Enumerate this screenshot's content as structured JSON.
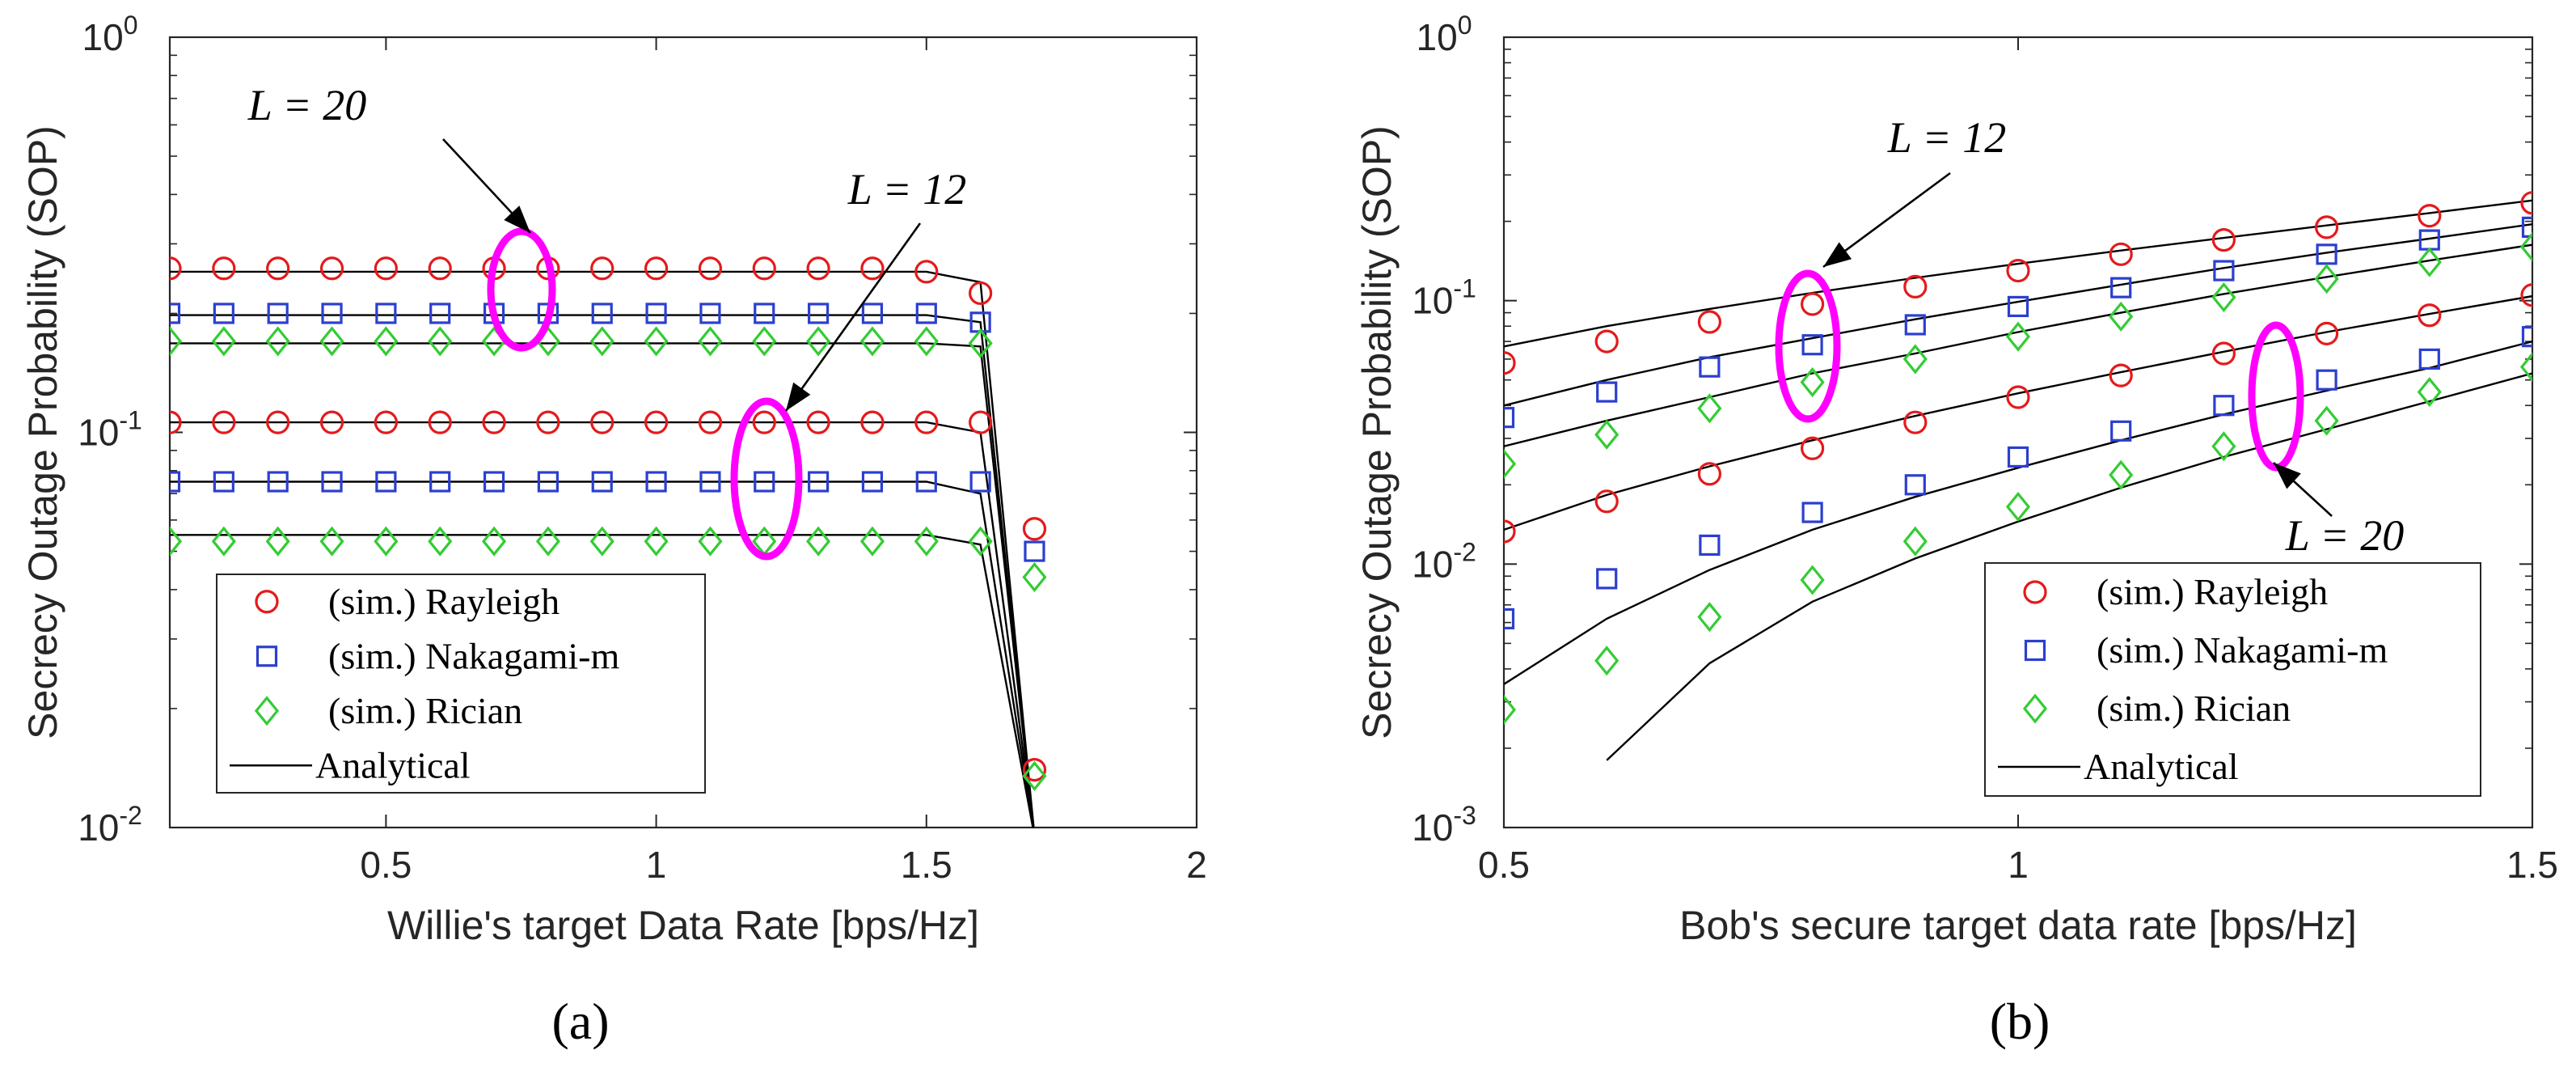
{
  "chart_data": [
    {
      "type": "line",
      "panel_label": "(a)",
      "xlabel": "Willie's target Data Rate [bps/Hz]",
      "ylabel": "Secrecy Outage Probability (SOP)",
      "xlim": [
        0.1,
        2
      ],
      "ylim": [
        0.01,
        1
      ],
      "yscale": "log",
      "xticks": [
        0.5,
        1,
        1.5,
        2
      ],
      "xtick_labels": [
        "0.5",
        "1",
        "1.5",
        "2"
      ],
      "yticks": [
        0.01,
        0.1,
        1
      ],
      "ytick_labels": [
        {
          "base": "10",
          "exp": "-2"
        },
        {
          "base": "10",
          "exp": "-1"
        },
        {
          "base": "10",
          "exp": "0"
        }
      ],
      "legend": {
        "placement": "bottom-left",
        "entries": [
          "(sim.) Rayleigh",
          "(sim.) Nakagami-m",
          "(sim.) Rician",
          "Analytical"
        ]
      },
      "annotations": [
        {
          "text": "L = 20",
          "target": "upper group (L = 20) at x = 0.75"
        },
        {
          "text": "L = 12",
          "target": "lower group (L = 12) at x = 1.2"
        }
      ],
      "series": [
        {
          "name": "(sim.) Rayleigh, L = 20",
          "marker": "circle",
          "color": "#e41a1c",
          "x": [
            0.1,
            0.2,
            0.3,
            0.4,
            0.5,
            0.6,
            0.7,
            0.8,
            0.9,
            1.0,
            1.1,
            1.2,
            1.3,
            1.4,
            1.5,
            1.6,
            1.7
          ],
          "y": [
            0.26,
            0.26,
            0.26,
            0.26,
            0.26,
            0.26,
            0.26,
            0.26,
            0.26,
            0.26,
            0.26,
            0.26,
            0.26,
            0.26,
            0.255,
            0.225,
            0.057
          ]
        },
        {
          "name": "(sim.) Nakagami-m, L = 20",
          "marker": "square",
          "color": "#2b3fcf",
          "x": [
            0.1,
            0.2,
            0.3,
            0.4,
            0.5,
            0.6,
            0.7,
            0.8,
            0.9,
            1.0,
            1.1,
            1.2,
            1.3,
            1.4,
            1.5,
            1.6,
            1.7
          ],
          "y": [
            0.2,
            0.2,
            0.2,
            0.2,
            0.2,
            0.2,
            0.2,
            0.2,
            0.2,
            0.2,
            0.2,
            0.2,
            0.2,
            0.2,
            0.2,
            0.19,
            0.05
          ]
        },
        {
          "name": "(sim.) Rician, L = 20",
          "marker": "diamond",
          "color": "#33cc33",
          "x": [
            0.1,
            0.2,
            0.3,
            0.4,
            0.5,
            0.6,
            0.7,
            0.8,
            0.9,
            1.0,
            1.1,
            1.2,
            1.3,
            1.4,
            1.5,
            1.6,
            1.7
          ],
          "y": [
            0.17,
            0.17,
            0.17,
            0.17,
            0.17,
            0.17,
            0.17,
            0.17,
            0.17,
            0.17,
            0.17,
            0.17,
            0.17,
            0.17,
            0.17,
            0.168,
            0.043
          ]
        },
        {
          "name": "(sim.) Rayleigh, L = 12",
          "marker": "circle",
          "color": "#e41a1c",
          "x": [
            0.1,
            0.2,
            0.3,
            0.4,
            0.5,
            0.6,
            0.7,
            0.8,
            0.9,
            1.0,
            1.1,
            1.2,
            1.3,
            1.4,
            1.5,
            1.6,
            1.7
          ],
          "y": [
            0.106,
            0.106,
            0.106,
            0.106,
            0.106,
            0.106,
            0.106,
            0.106,
            0.106,
            0.106,
            0.106,
            0.106,
            0.106,
            0.106,
            0.106,
            0.106,
            0.014
          ]
        },
        {
          "name": "(sim.) Nakagami-m, L = 12",
          "marker": "square",
          "color": "#2b3fcf",
          "x": [
            0.1,
            0.2,
            0.3,
            0.4,
            0.5,
            0.6,
            0.7,
            0.8,
            0.9,
            1.0,
            1.1,
            1.2,
            1.3,
            1.4,
            1.5,
            1.6
          ],
          "y": [
            0.075,
            0.075,
            0.075,
            0.075,
            0.075,
            0.075,
            0.075,
            0.075,
            0.075,
            0.075,
            0.075,
            0.075,
            0.075,
            0.075,
            0.075,
            0.075
          ]
        },
        {
          "name": "(sim.) Rician, L = 12",
          "marker": "diamond",
          "color": "#33cc33",
          "x": [
            0.1,
            0.2,
            0.3,
            0.4,
            0.5,
            0.6,
            0.7,
            0.8,
            0.9,
            1.0,
            1.1,
            1.2,
            1.3,
            1.4,
            1.5,
            1.6,
            1.7
          ],
          "y": [
            0.053,
            0.053,
            0.053,
            0.053,
            0.053,
            0.053,
            0.053,
            0.053,
            0.053,
            0.053,
            0.053,
            0.053,
            0.053,
            0.053,
            0.053,
            0.053,
            0.0135
          ]
        },
        {
          "name": "Analytical (Rayleigh, L = 20)",
          "marker": "none",
          "color": "#000000",
          "x": [
            0.1,
            1.5,
            1.6,
            1.7
          ],
          "y": [
            0.255,
            0.255,
            0.24,
            0.0095
          ]
        },
        {
          "name": "Analytical (Nakagami-m, L = 20)",
          "marker": "none",
          "color": "#000000",
          "x": [
            0.1,
            1.5,
            1.6,
            1.7
          ],
          "y": [
            0.198,
            0.198,
            0.19,
            0.0095
          ]
        },
        {
          "name": "Analytical (Rician, L = 20)",
          "marker": "none",
          "color": "#000000",
          "x": [
            0.1,
            1.5,
            1.6,
            1.7
          ],
          "y": [
            0.168,
            0.168,
            0.165,
            0.0095
          ]
        },
        {
          "name": "Analytical (Rayleigh, L = 12)",
          "marker": "none",
          "color": "#000000",
          "x": [
            0.1,
            1.5,
            1.6,
            1.7
          ],
          "y": [
            0.106,
            0.106,
            0.1,
            0.0095
          ]
        },
        {
          "name": "Analytical (Nakagami-m, L = 12)",
          "marker": "none",
          "color": "#000000",
          "x": [
            0.1,
            1.5,
            1.6,
            1.7
          ],
          "y": [
            0.075,
            0.075,
            0.07,
            0.0095
          ]
        },
        {
          "name": "Analytical (Rician, L = 12)",
          "marker": "none",
          "color": "#000000",
          "x": [
            0.1,
            1.5,
            1.6,
            1.7
          ],
          "y": [
            0.055,
            0.055,
            0.052,
            0.0095
          ]
        }
      ]
    },
    {
      "type": "line",
      "panel_label": "(b)",
      "xlabel": "Bob's secure target data rate [bps/Hz]",
      "ylabel": "Secrecy Outage Probability (SOP)",
      "xlim": [
        0.5,
        1.5
      ],
      "ylim": [
        0.001,
        1
      ],
      "yscale": "log",
      "xticks": [
        0.5,
        1,
        1.5
      ],
      "xtick_labels": [
        "0.5",
        "1",
        "1.5"
      ],
      "yticks": [
        0.001,
        0.01,
        0.1,
        1
      ],
      "ytick_labels": [
        {
          "base": "10",
          "exp": "-3"
        },
        {
          "base": "10",
          "exp": "-2"
        },
        {
          "base": "10",
          "exp": "-1"
        },
        {
          "base": "10",
          "exp": "0"
        }
      ],
      "legend": {
        "placement": "bottom-right",
        "entries": [
          "(sim.) Rayleigh",
          "(sim.) Nakagami-m",
          "(sim.) Rician",
          "Analytical"
        ]
      },
      "annotations": [
        {
          "text": "L = 12",
          "target": "upper group (L = 12) at x = 0.8"
        },
        {
          "text": "L = 20",
          "target": "lower group (L = 20) at x = 1.25"
        }
      ],
      "series": [
        {
          "name": "(sim.) Rayleigh, L = 12",
          "marker": "circle",
          "color": "#e41a1c",
          "x": [
            0.5,
            0.6,
            0.7,
            0.8,
            0.9,
            1.0,
            1.1,
            1.2,
            1.3,
            1.4,
            1.5
          ],
          "y": [
            0.058,
            0.07,
            0.083,
            0.097,
            0.113,
            0.13,
            0.15,
            0.17,
            0.19,
            0.21,
            0.235
          ]
        },
        {
          "name": "(sim.) Nakagami-m, L = 12",
          "marker": "square",
          "color": "#2b3fcf",
          "x": [
            0.5,
            0.6,
            0.7,
            0.8,
            0.9,
            1.0,
            1.1,
            1.2,
            1.3,
            1.4,
            1.5
          ],
          "y": [
            0.036,
            0.045,
            0.056,
            0.068,
            0.081,
            0.095,
            0.112,
            0.13,
            0.15,
            0.17,
            0.19
          ]
        },
        {
          "name": "(sim.) Rician, L = 12",
          "marker": "diamond",
          "color": "#33cc33",
          "x": [
            0.5,
            0.6,
            0.7,
            0.8,
            0.9,
            1.0,
            1.1,
            1.2,
            1.3,
            1.4,
            1.5
          ],
          "y": [
            0.024,
            0.031,
            0.039,
            0.049,
            0.06,
            0.073,
            0.087,
            0.103,
            0.121,
            0.14,
            0.16
          ]
        },
        {
          "name": "(sim.) Rayleigh, L = 20",
          "marker": "circle",
          "color": "#e41a1c",
          "x": [
            0.5,
            0.6,
            0.7,
            0.8,
            0.9,
            1.0,
            1.1,
            1.2,
            1.3,
            1.4,
            1.5
          ],
          "y": [
            0.0133,
            0.0173,
            0.022,
            0.0275,
            0.0345,
            0.043,
            0.052,
            0.063,
            0.075,
            0.088,
            0.105
          ]
        },
        {
          "name": "(sim.) Nakagami-m, L = 20",
          "marker": "square",
          "color": "#2b3fcf",
          "x": [
            0.5,
            0.6,
            0.7,
            0.8,
            0.9,
            1.0,
            1.1,
            1.2,
            1.3,
            1.4,
            1.5
          ],
          "y": [
            0.0062,
            0.0088,
            0.0118,
            0.0157,
            0.02,
            0.0255,
            0.032,
            0.04,
            0.05,
            0.06,
            0.073
          ]
        },
        {
          "name": "(sim.) Rician, L = 20",
          "marker": "diamond",
          "color": "#33cc33",
          "x": [
            0.5,
            0.6,
            0.7,
            0.8,
            0.9,
            1.0,
            1.1,
            1.2,
            1.3,
            1.4,
            1.5
          ],
          "y": [
            0.0028,
            0.0043,
            0.0063,
            0.0087,
            0.0122,
            0.0165,
            0.0218,
            0.028,
            0.035,
            0.045,
            0.056
          ]
        },
        {
          "name": "Analytical (Rayleigh, L = 12)",
          "marker": "none",
          "color": "#000000",
          "x": [
            0.5,
            0.6,
            0.7,
            0.8,
            0.9,
            1.0,
            1.1,
            1.2,
            1.3,
            1.4,
            1.5
          ],
          "y": [
            0.067,
            0.08,
            0.093,
            0.107,
            0.122,
            0.138,
            0.155,
            0.173,
            0.193,
            0.215,
            0.24
          ]
        },
        {
          "name": "Analytical (Nakagami-m, L = 12)",
          "marker": "none",
          "color": "#000000",
          "x": [
            0.5,
            0.6,
            0.7,
            0.8,
            0.9,
            1.0,
            1.1,
            1.2,
            1.3,
            1.4,
            1.5
          ],
          "y": [
            0.04,
            0.05,
            0.061,
            0.072,
            0.085,
            0.099,
            0.115,
            0.133,
            0.152,
            0.172,
            0.195
          ]
        },
        {
          "name": "Analytical (Rician, L = 12)",
          "marker": "none",
          "color": "#000000",
          "x": [
            0.5,
            0.6,
            0.7,
            0.8,
            0.9,
            1.0,
            1.1,
            1.2,
            1.3,
            1.4,
            1.5
          ],
          "y": [
            0.028,
            0.035,
            0.043,
            0.053,
            0.063,
            0.076,
            0.09,
            0.106,
            0.123,
            0.142,
            0.163
          ]
        },
        {
          "name": "Analytical (Rayleigh, L = 20)",
          "marker": "none",
          "color": "#000000",
          "x": [
            0.5,
            0.6,
            0.7,
            0.8,
            0.9,
            1.0,
            1.1,
            1.2,
            1.3,
            1.4,
            1.5
          ],
          "y": [
            0.0135,
            0.0183,
            0.0235,
            0.0295,
            0.0365,
            0.0445,
            0.0535,
            0.064,
            0.076,
            0.089,
            0.104
          ]
        },
        {
          "name": "Analytical (Nakagami-m, L = 20)",
          "marker": "none",
          "color": "#000000",
          "x": [
            0.5,
            0.6,
            0.7,
            0.8,
            0.9,
            1.0,
            1.1,
            1.2,
            1.3,
            1.4,
            1.5
          ],
          "y": [
            0.0035,
            0.0062,
            0.0095,
            0.0135,
            0.018,
            0.0232,
            0.0295,
            0.037,
            0.0455,
            0.0555,
            0.07
          ]
        },
        {
          "name": "Analytical (Rician, L = 20)",
          "marker": "none",
          "color": "#000000",
          "x": [
            0.6,
            0.7,
            0.8,
            0.9,
            1.0,
            1.1,
            1.2,
            1.3,
            1.4,
            1.5
          ],
          "y": [
            0.0018,
            0.0042,
            0.0072,
            0.0105,
            0.0145,
            0.0195,
            0.0255,
            0.0325,
            0.0415,
            0.053
          ]
        }
      ]
    }
  ]
}
